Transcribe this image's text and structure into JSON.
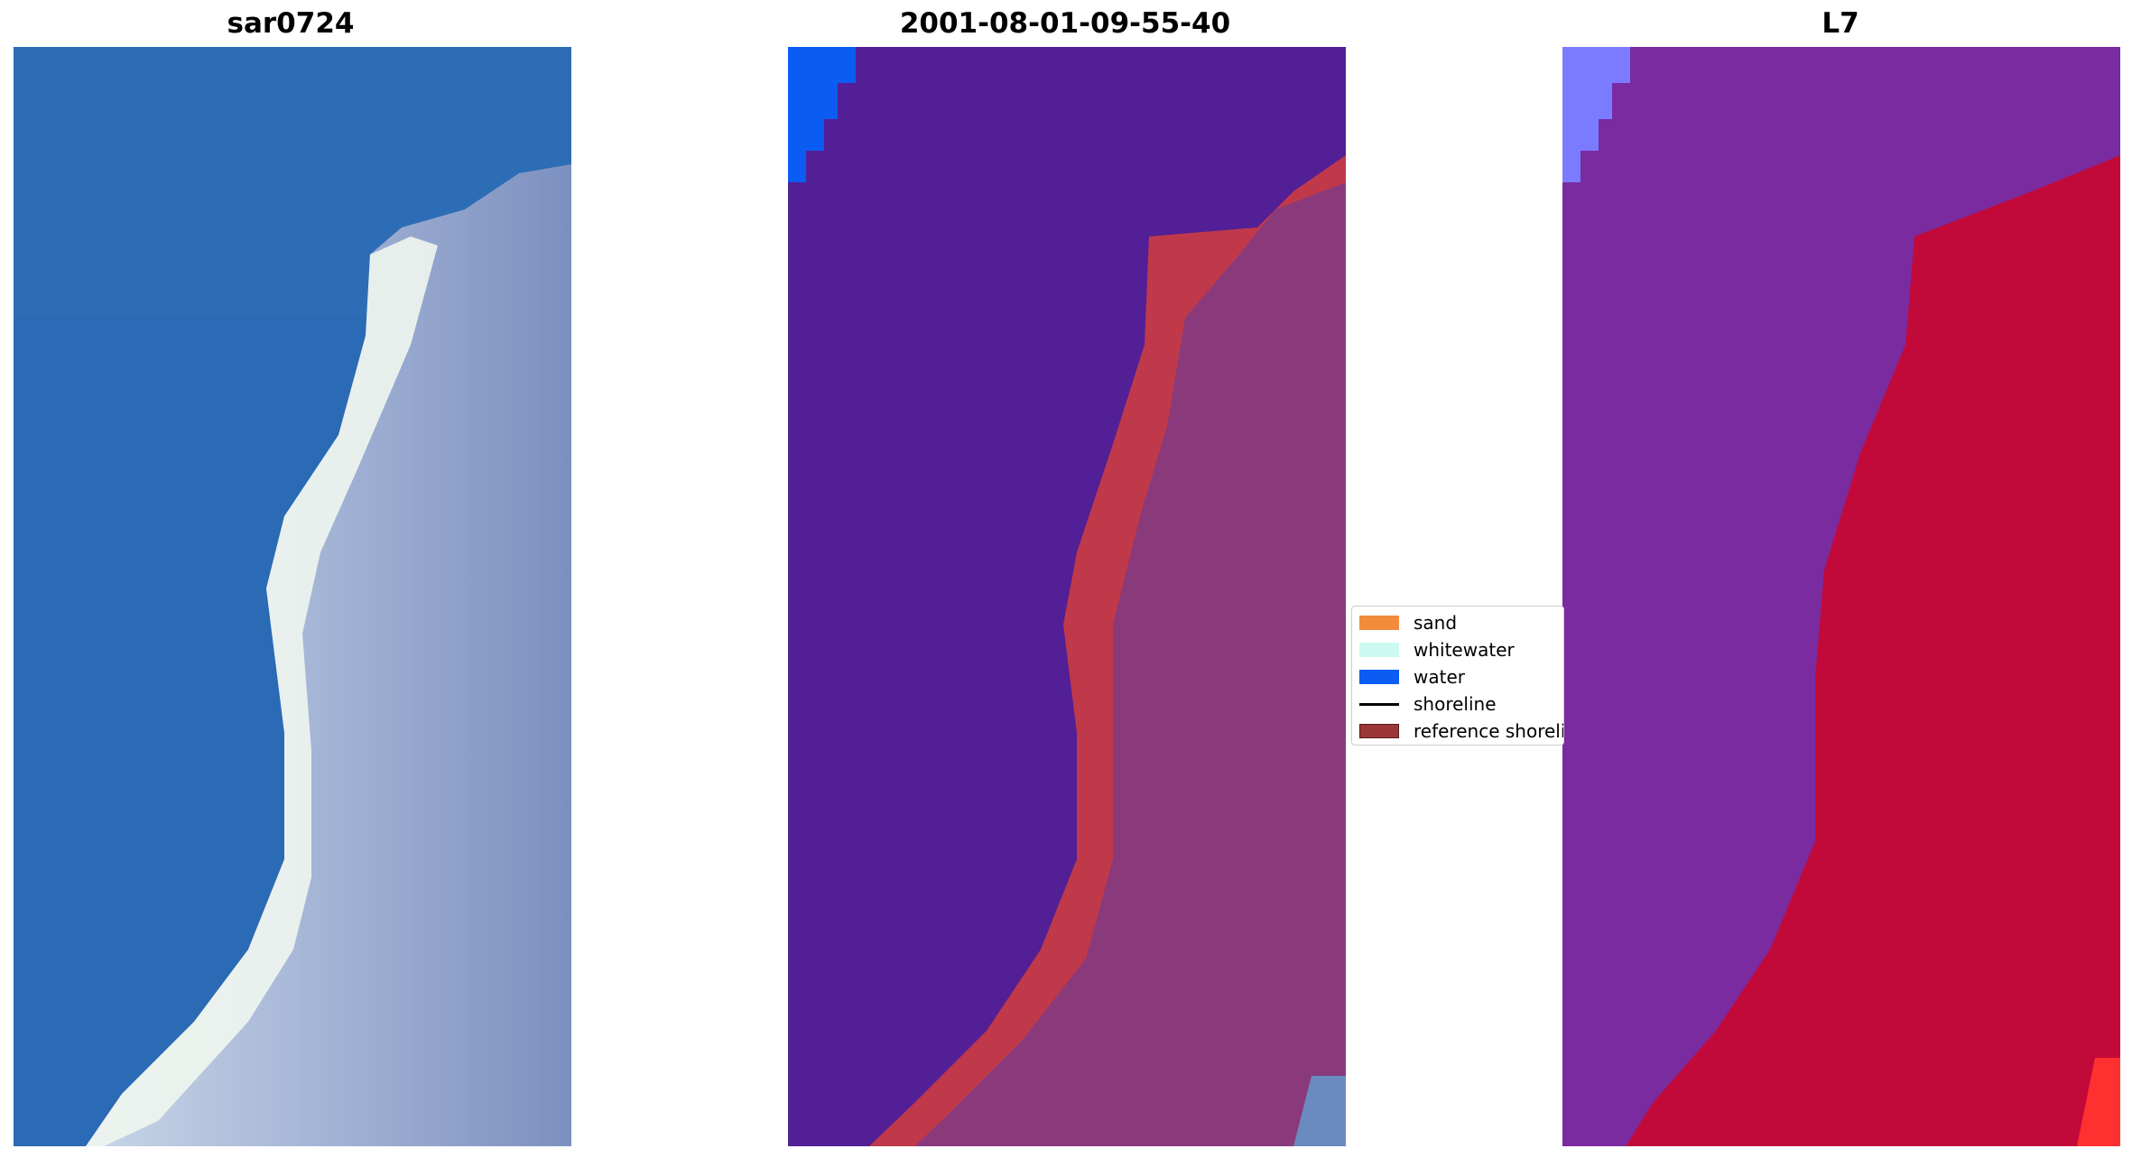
{
  "panels": [
    {
      "title": "sar0724"
    },
    {
      "title": "2001-08-01-09-55-40"
    },
    {
      "title": "L7"
    }
  ],
  "legend": {
    "items": [
      {
        "label": "sand",
        "color": "#f28c3c",
        "kind": "patch"
      },
      {
        "label": "whitewater",
        "color": "#ccfaf2",
        "kind": "patch"
      },
      {
        "label": "water",
        "color": "#0a5cf2",
        "kind": "patch"
      },
      {
        "label": "shoreline",
        "color": "#000000",
        "kind": "line"
      },
      {
        "label": "reference shoreline",
        "color": "#9b3636",
        "kind": "patch"
      }
    ]
  },
  "colors": {
    "ocean_rgb": "#2d6fb4",
    "beach_rgb": "#e6eef0",
    "land_rgb": "#6e82b4",
    "classified_water": "#521f96",
    "classified_land": "#8a3a7a",
    "reference_band": "#c0394a",
    "ndwi_water": "#7a2ba0",
    "ndwi_land": "#c20a3a"
  }
}
